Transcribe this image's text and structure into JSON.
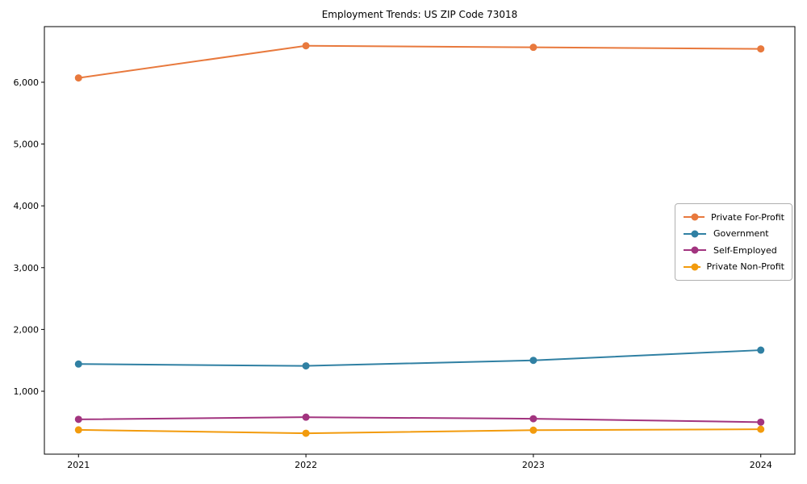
{
  "chart_data": {
    "type": "line",
    "title": "Employment Trends: US ZIP Code 73018",
    "xlabel": "",
    "ylabel": "",
    "x": [
      2021,
      2022,
      2023,
      2024
    ],
    "x_tick_labels": [
      "2021",
      "2022",
      "2023",
      "2024"
    ],
    "y_ticks": [
      1000,
      2000,
      3000,
      4000,
      5000,
      6000
    ],
    "y_tick_labels": [
      "1,000",
      "2,000",
      "3,000",
      "4,000",
      "5,000",
      "6,000"
    ],
    "xlim": [
      2020.85,
      2024.15
    ],
    "ylim": [
      -18,
      6900
    ],
    "grid": false,
    "legend_position": "center-right",
    "axis_color": "#000000",
    "series": [
      {
        "name": "Private For-Profit",
        "slug": "private-for-profit",
        "color": "#E8793D",
        "values": [
          6070,
          6590,
          6565,
          6540
        ]
      },
      {
        "name": "Government",
        "slug": "government",
        "color": "#3080A3",
        "values": [
          1440,
          1410,
          1500,
          1665
        ]
      },
      {
        "name": "Self-Employed",
        "slug": "self-employed",
        "color": "#A2347F",
        "values": [
          545,
          580,
          555,
          500
        ]
      },
      {
        "name": "Private Non-Profit",
        "slug": "private-non-profit",
        "color": "#F29B0D",
        "values": [
          375,
          320,
          370,
          385
        ]
      }
    ]
  }
}
